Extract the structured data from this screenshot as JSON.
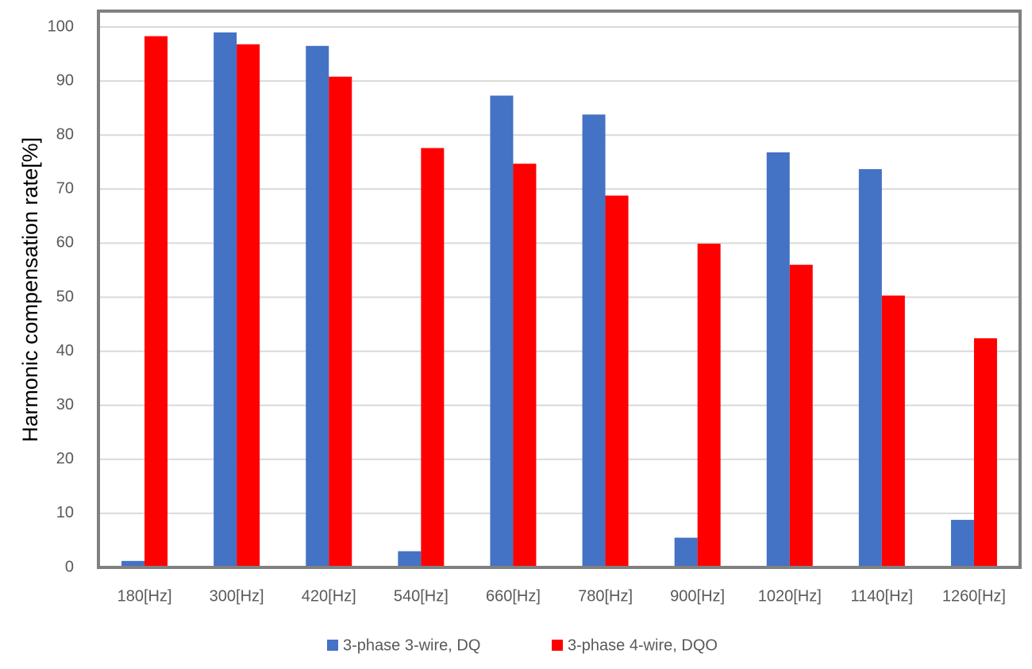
{
  "chart_data": {
    "type": "bar",
    "title": "",
    "xlabel": "",
    "ylabel": "Harmonic compensation rate[%]",
    "ylim": [
      0,
      100
    ],
    "yticks": [
      0,
      10,
      20,
      30,
      40,
      50,
      60,
      70,
      80,
      90,
      100
    ],
    "grid": true,
    "legend_position": "bottom",
    "categories": [
      "180[Hz]",
      "300[Hz]",
      "420[Hz]",
      "540[Hz]",
      "660[Hz]",
      "780[Hz]",
      "900[Hz]",
      "1020[Hz]",
      "1140[Hz]",
      "1260[Hz]"
    ],
    "series": [
      {
        "name": "3-phase 3-wire, DQ",
        "color": "#4472C4",
        "values": [
          1.2,
          99.0,
          96.5,
          3.0,
          87.3,
          83.8,
          5.5,
          76.8,
          73.7,
          8.8
        ]
      },
      {
        "name": "3-phase 4-wire, DQO",
        "color": "#FF0000",
        "values": [
          98.3,
          96.8,
          90.8,
          77.6,
          74.7,
          68.8,
          59.9,
          56.0,
          50.3,
          42.4
        ]
      }
    ],
    "colors": {
      "frame": "#808080",
      "grid": "#D9D9D9",
      "text": "#595959"
    }
  }
}
